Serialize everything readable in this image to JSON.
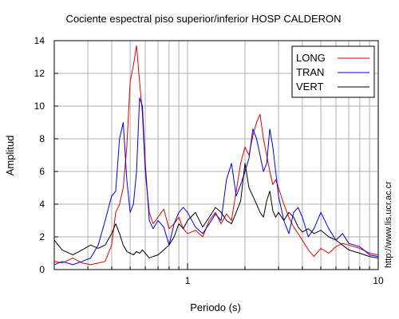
{
  "chart_data": {
    "type": "line",
    "title": "Cociente espectral piso superior/inferior  HOSP CALDERON",
    "xlabel": "Periodo (s)",
    "ylabel": "Amplitud",
    "xscale": "log",
    "xlim": [
      0.2,
      10
    ],
    "ylim": [
      0,
      14
    ],
    "x_tick_labels": [
      {
        "value": 1,
        "label": "1"
      },
      {
        "value": 10,
        "label": "10"
      }
    ],
    "y_ticks": [
      0,
      2,
      4,
      6,
      8,
      10,
      12,
      14
    ],
    "y_tick_labels": [
      "0",
      "2",
      "4",
      "6",
      "8",
      "10",
      "12",
      "14"
    ],
    "grid": true,
    "legend_position": "top-right",
    "side_text": "http://www.lis.ucr.ac.cr",
    "series": [
      {
        "name": "LONG",
        "color": "#e00000",
        "x": [
          0.2,
          0.22,
          0.25,
          0.28,
          0.31,
          0.34,
          0.37,
          0.4,
          0.42,
          0.44,
          0.46,
          0.48,
          0.5,
          0.52,
          0.54,
          0.56,
          0.58,
          0.6,
          0.63,
          0.66,
          0.7,
          0.75,
          0.8,
          0.85,
          0.9,
          0.95,
          1.0,
          1.1,
          1.2,
          1.3,
          1.4,
          1.5,
          1.6,
          1.7,
          1.8,
          1.9,
          2.0,
          2.1,
          2.2,
          2.3,
          2.4,
          2.5,
          2.6,
          2.7,
          2.8,
          2.9,
          3.0,
          3.2,
          3.4,
          3.6,
          3.8,
          4.0,
          4.3,
          4.6,
          5.0,
          5.5,
          6.0,
          6.5,
          7.0,
          8.0,
          9.0,
          10.0
        ],
        "y": [
          0.5,
          0.4,
          0.7,
          0.4,
          0.3,
          0.4,
          0.5,
          1.5,
          3.5,
          4.0,
          5.0,
          7.5,
          11.5,
          12.5,
          13.7,
          11.5,
          9.5,
          6.0,
          3.5,
          2.8,
          3.2,
          3.7,
          2.5,
          2.8,
          3.2,
          2.5,
          2.2,
          2.4,
          2.0,
          3.0,
          3.5,
          2.8,
          3.4,
          3.0,
          4.8,
          6.5,
          7.5,
          7.0,
          8.2,
          9.0,
          9.5,
          8.0,
          7.0,
          6.0,
          5.2,
          5.5,
          5.0,
          4.0,
          3.2,
          2.6,
          2.2,
          1.8,
          1.2,
          0.8,
          1.3,
          1.0,
          1.4,
          1.6,
          1.5,
          1.3,
          1.0,
          0.9
        ]
      },
      {
        "name": "TRAN",
        "color": "#0000e0",
        "x": [
          0.2,
          0.22,
          0.25,
          0.28,
          0.31,
          0.34,
          0.37,
          0.4,
          0.42,
          0.44,
          0.46,
          0.48,
          0.5,
          0.52,
          0.54,
          0.56,
          0.58,
          0.6,
          0.63,
          0.66,
          0.7,
          0.75,
          0.8,
          0.85,
          0.9,
          0.95,
          1.0,
          1.1,
          1.2,
          1.3,
          1.4,
          1.5,
          1.6,
          1.7,
          1.8,
          1.9,
          2.0,
          2.1,
          2.2,
          2.3,
          2.4,
          2.5,
          2.6,
          2.7,
          2.8,
          2.9,
          3.0,
          3.2,
          3.4,
          3.6,
          3.8,
          4.0,
          4.3,
          4.6,
          5.0,
          5.5,
          6.0,
          6.5,
          7.0,
          8.0,
          9.0,
          10.0
        ],
        "y": [
          0.3,
          0.5,
          0.3,
          0.5,
          0.7,
          1.5,
          3.0,
          4.5,
          4.8,
          8.0,
          9.0,
          5.5,
          3.5,
          4.0,
          6.0,
          10.5,
          10.0,
          6.5,
          3.0,
          2.5,
          3.0,
          2.6,
          1.5,
          2.8,
          3.5,
          3.8,
          3.5,
          2.6,
          2.2,
          2.8,
          3.4,
          3.0,
          5.5,
          6.5,
          4.5,
          5.2,
          6.0,
          6.8,
          8.6,
          8.0,
          7.0,
          6.0,
          6.5,
          8.6,
          7.5,
          6.0,
          4.5,
          3.0,
          2.2,
          3.5,
          3.8,
          3.2,
          2.0,
          2.5,
          3.5,
          2.5,
          1.8,
          2.2,
          1.6,
          1.4,
          0.9,
          0.8
        ]
      },
      {
        "name": "VERT",
        "color": "#000000",
        "x": [
          0.2,
          0.22,
          0.25,
          0.28,
          0.31,
          0.34,
          0.37,
          0.4,
          0.42,
          0.44,
          0.46,
          0.48,
          0.5,
          0.52,
          0.54,
          0.56,
          0.58,
          0.6,
          0.63,
          0.66,
          0.7,
          0.75,
          0.8,
          0.85,
          0.9,
          0.95,
          1.0,
          1.1,
          1.2,
          1.3,
          1.4,
          1.5,
          1.6,
          1.7,
          1.8,
          1.9,
          2.0,
          2.1,
          2.2,
          2.3,
          2.4,
          2.5,
          2.6,
          2.7,
          2.8,
          2.9,
          3.0,
          3.2,
          3.4,
          3.6,
          3.8,
          4.0,
          4.3,
          4.6,
          5.0,
          5.5,
          6.0,
          6.5,
          7.0,
          8.0,
          9.0,
          10.0
        ],
        "y": [
          1.8,
          1.2,
          0.9,
          1.2,
          1.5,
          1.3,
          1.5,
          2.2,
          2.8,
          2.2,
          1.5,
          1.1,
          1.0,
          0.9,
          1.1,
          1.0,
          1.2,
          1.0,
          0.7,
          0.8,
          0.9,
          1.2,
          1.5,
          2.0,
          2.8,
          2.5,
          3.0,
          3.5,
          2.6,
          3.2,
          3.8,
          3.5,
          3.0,
          2.8,
          3.5,
          4.2,
          6.5,
          5.0,
          4.5,
          4.0,
          3.5,
          3.2,
          4.2,
          4.8,
          3.6,
          3.2,
          3.5,
          3.0,
          3.5,
          3.2,
          2.6,
          2.3,
          2.5,
          2.2,
          2.4,
          2.0,
          1.8,
          1.5,
          1.2,
          1.0,
          0.8,
          0.7
        ]
      }
    ]
  }
}
